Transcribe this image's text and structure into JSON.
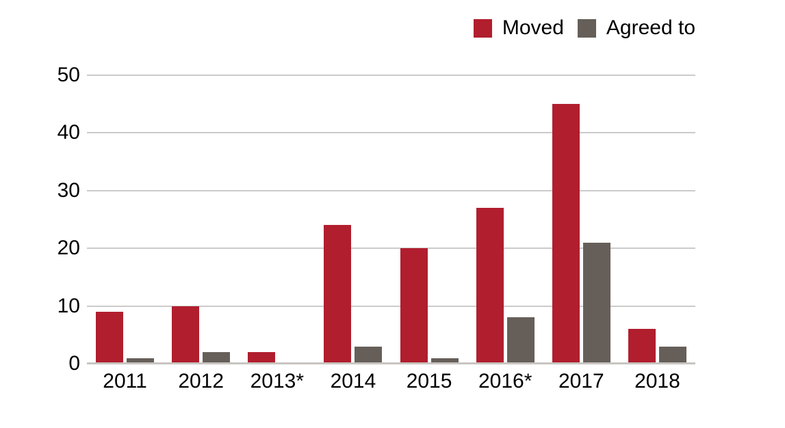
{
  "chart_data": {
    "type": "bar",
    "title": "",
    "xlabel": "",
    "ylabel": "",
    "categories": [
      "2011",
      "2012",
      "2013*",
      "2014",
      "2015",
      "2016*",
      "2017",
      "2018"
    ],
    "series": [
      {
        "name": "Moved",
        "color": "#B11E2E",
        "values": [
          9,
          10,
          2,
          24,
          20,
          27,
          45,
          6
        ]
      },
      {
        "name": "Agreed to",
        "color": "#665F59",
        "values": [
          1,
          2,
          0,
          3,
          1,
          8,
          21,
          3
        ]
      }
    ],
    "ylim": [
      0,
      50
    ],
    "yticks": [
      0,
      10,
      20,
      30,
      40,
      50
    ],
    "grid": true,
    "legend_position": "top-right"
  },
  "colors": {
    "background": "#FFFFFF",
    "grid_line": "#CCCBCA",
    "baseline": "#C8C5C1",
    "axis_text": "#000000"
  }
}
